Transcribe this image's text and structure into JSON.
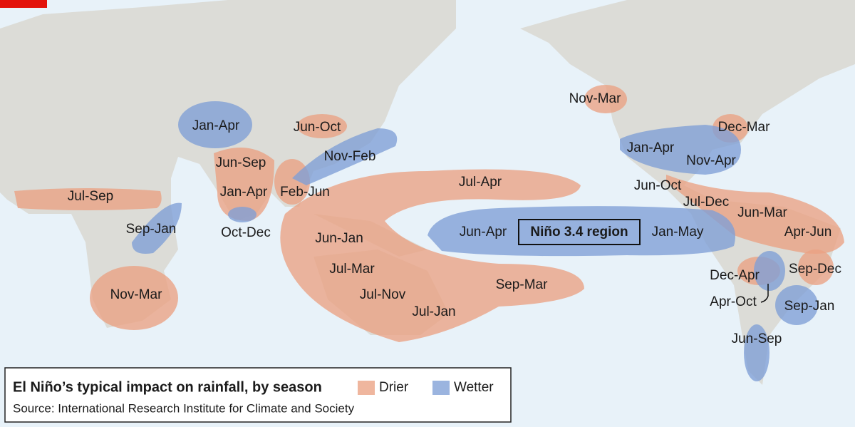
{
  "map": {
    "region_label": "Niño 3.4 region",
    "labels": [
      "Jan-Apr",
      "Jun-Oct",
      "Nov-Feb",
      "Jun-Sep",
      "Jan-Apr",
      "Feb-Jun",
      "Jul-Sep",
      "Sep-Jan",
      "Oct-Dec",
      "Jun-Jan",
      "Jul-Apr",
      "Jun-Apr",
      "Jan-May",
      "Jul-Mar",
      "Jul-Nov",
      "Jul-Jan",
      "Sep-Mar",
      "Nov-Mar",
      "Nov-Mar",
      "Dec-Mar",
      "Jan-Apr",
      "Nov-Apr",
      "Jun-Oct",
      "Jul-Dec",
      "Jun-Mar",
      "Apr-Jun",
      "Dec-Apr",
      "Sep-Dec",
      "Apr-Oct",
      "Sep-Jan",
      "Jun-Sep"
    ]
  },
  "legend": {
    "title": "El Niño’s typical impact on rainfall, by season",
    "items": [
      "Drier",
      "Wetter"
    ],
    "source": "Source: International Research Institute for Climate and Society"
  }
}
